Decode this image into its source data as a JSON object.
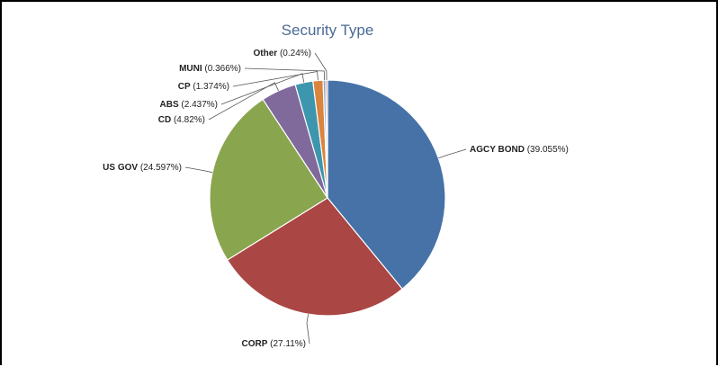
{
  "chart_data": {
    "type": "pie",
    "title": "Security Type",
    "slices": [
      {
        "name": "AGCY BOND",
        "value": 39.055,
        "label": "(39.055%)",
        "color": "#4672a8"
      },
      {
        "name": "CORP",
        "value": 27.11,
        "label": "(27.11%)",
        "color": "#aa4643"
      },
      {
        "name": "US GOV",
        "value": 24.597,
        "label": "(24.597%)",
        "color": "#89a54e"
      },
      {
        "name": "CD",
        "value": 4.82,
        "label": "(4.82%)",
        "color": "#80699b"
      },
      {
        "name": "ABS",
        "value": 2.437,
        "label": "(2.437%)",
        "color": "#3d96ae"
      },
      {
        "name": "CP",
        "value": 1.374,
        "label": "(1.374%)",
        "color": "#db843d"
      },
      {
        "name": "MUNI",
        "value": 0.366,
        "label": "(0.366%)",
        "color": "#92a8cd"
      },
      {
        "name": "Other",
        "value": 0.24,
        "label": "(0.24%)",
        "color": "#a47d7c"
      }
    ],
    "legend": "none",
    "data_labels": "outside-with-leaders"
  }
}
